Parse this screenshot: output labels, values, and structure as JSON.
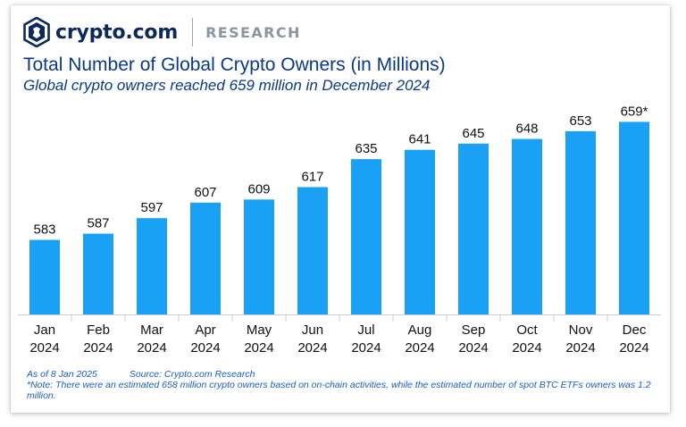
{
  "header": {
    "brand": "crypto.com",
    "section": "RESEARCH"
  },
  "title": "Total Number of Global Crypto Owners (in Millions)",
  "subtitle": "Global crypto owners reached 659 million in December 2024",
  "footer": {
    "as_of": "As of 8 Jan 2025",
    "source": "Source: Crypto.com Research",
    "note": "*Note: There were an estimated 658 million crypto owners based on on-chain activities, while the estimated number of spot BTC ETFs owners was 1.2 million."
  },
  "colors": {
    "bar": "#1aa1f5",
    "title": "#0b3a82",
    "footer": "#1a5fc4",
    "logo": "#0b2a5a"
  },
  "chart_data": {
    "type": "bar",
    "categories": [
      [
        "Jan",
        "2024"
      ],
      [
        "Feb",
        "2024"
      ],
      [
        "Mar",
        "2024"
      ],
      [
        "Apr",
        "2024"
      ],
      [
        "May",
        "2024"
      ],
      [
        "Jun",
        "2024"
      ],
      [
        "Jul",
        "2024"
      ],
      [
        "Aug",
        "2024"
      ],
      [
        "Sep",
        "2024"
      ],
      [
        "Oct",
        "2024"
      ],
      [
        "Nov",
        "2024"
      ],
      [
        "Dec",
        "2024"
      ]
    ],
    "values": [
      583,
      587,
      597,
      607,
      609,
      617,
      635,
      641,
      645,
      648,
      653,
      659
    ],
    "data_labels": [
      "583",
      "587",
      "597",
      "607",
      "609",
      "617",
      "635",
      "641",
      "645",
      "648",
      "653",
      "659*"
    ],
    "ylim": [
      535,
      665
    ],
    "grid": false,
    "legend": "none"
  }
}
